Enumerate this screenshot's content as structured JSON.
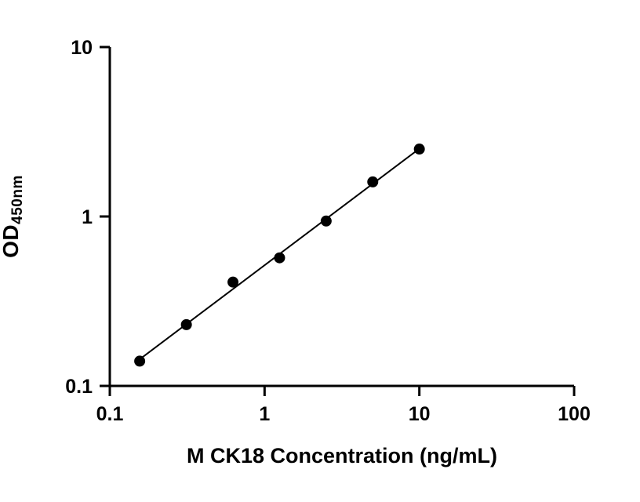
{
  "chart_data": {
    "type": "scatter",
    "title": "",
    "xlabel": "M CK18 Concentration (ng/mL)",
    "ylabel_main": "OD",
    "ylabel_sub": "450nm",
    "xscale": "log",
    "yscale": "log",
    "xlim": [
      0.1,
      100
    ],
    "ylim": [
      0.1,
      10
    ],
    "x_ticks": [
      0.1,
      1,
      10,
      100
    ],
    "x_tick_labels": [
      "0.1",
      "1",
      "10",
      "100"
    ],
    "y_ticks": [
      0.1,
      1,
      10
    ],
    "y_tick_labels": [
      "0.1",
      "1",
      "10"
    ],
    "x": [
      0.156,
      0.3125,
      0.625,
      1.25,
      2.5,
      5,
      10
    ],
    "y": [
      0.14,
      0.23,
      0.41,
      0.57,
      0.94,
      1.6,
      2.5
    ],
    "grid": false,
    "legend_position": "none",
    "marker_color": "#000000",
    "line_color": "#000000",
    "axis_color": "#000000",
    "background_color": "#ffffff",
    "fit_line": true
  }
}
